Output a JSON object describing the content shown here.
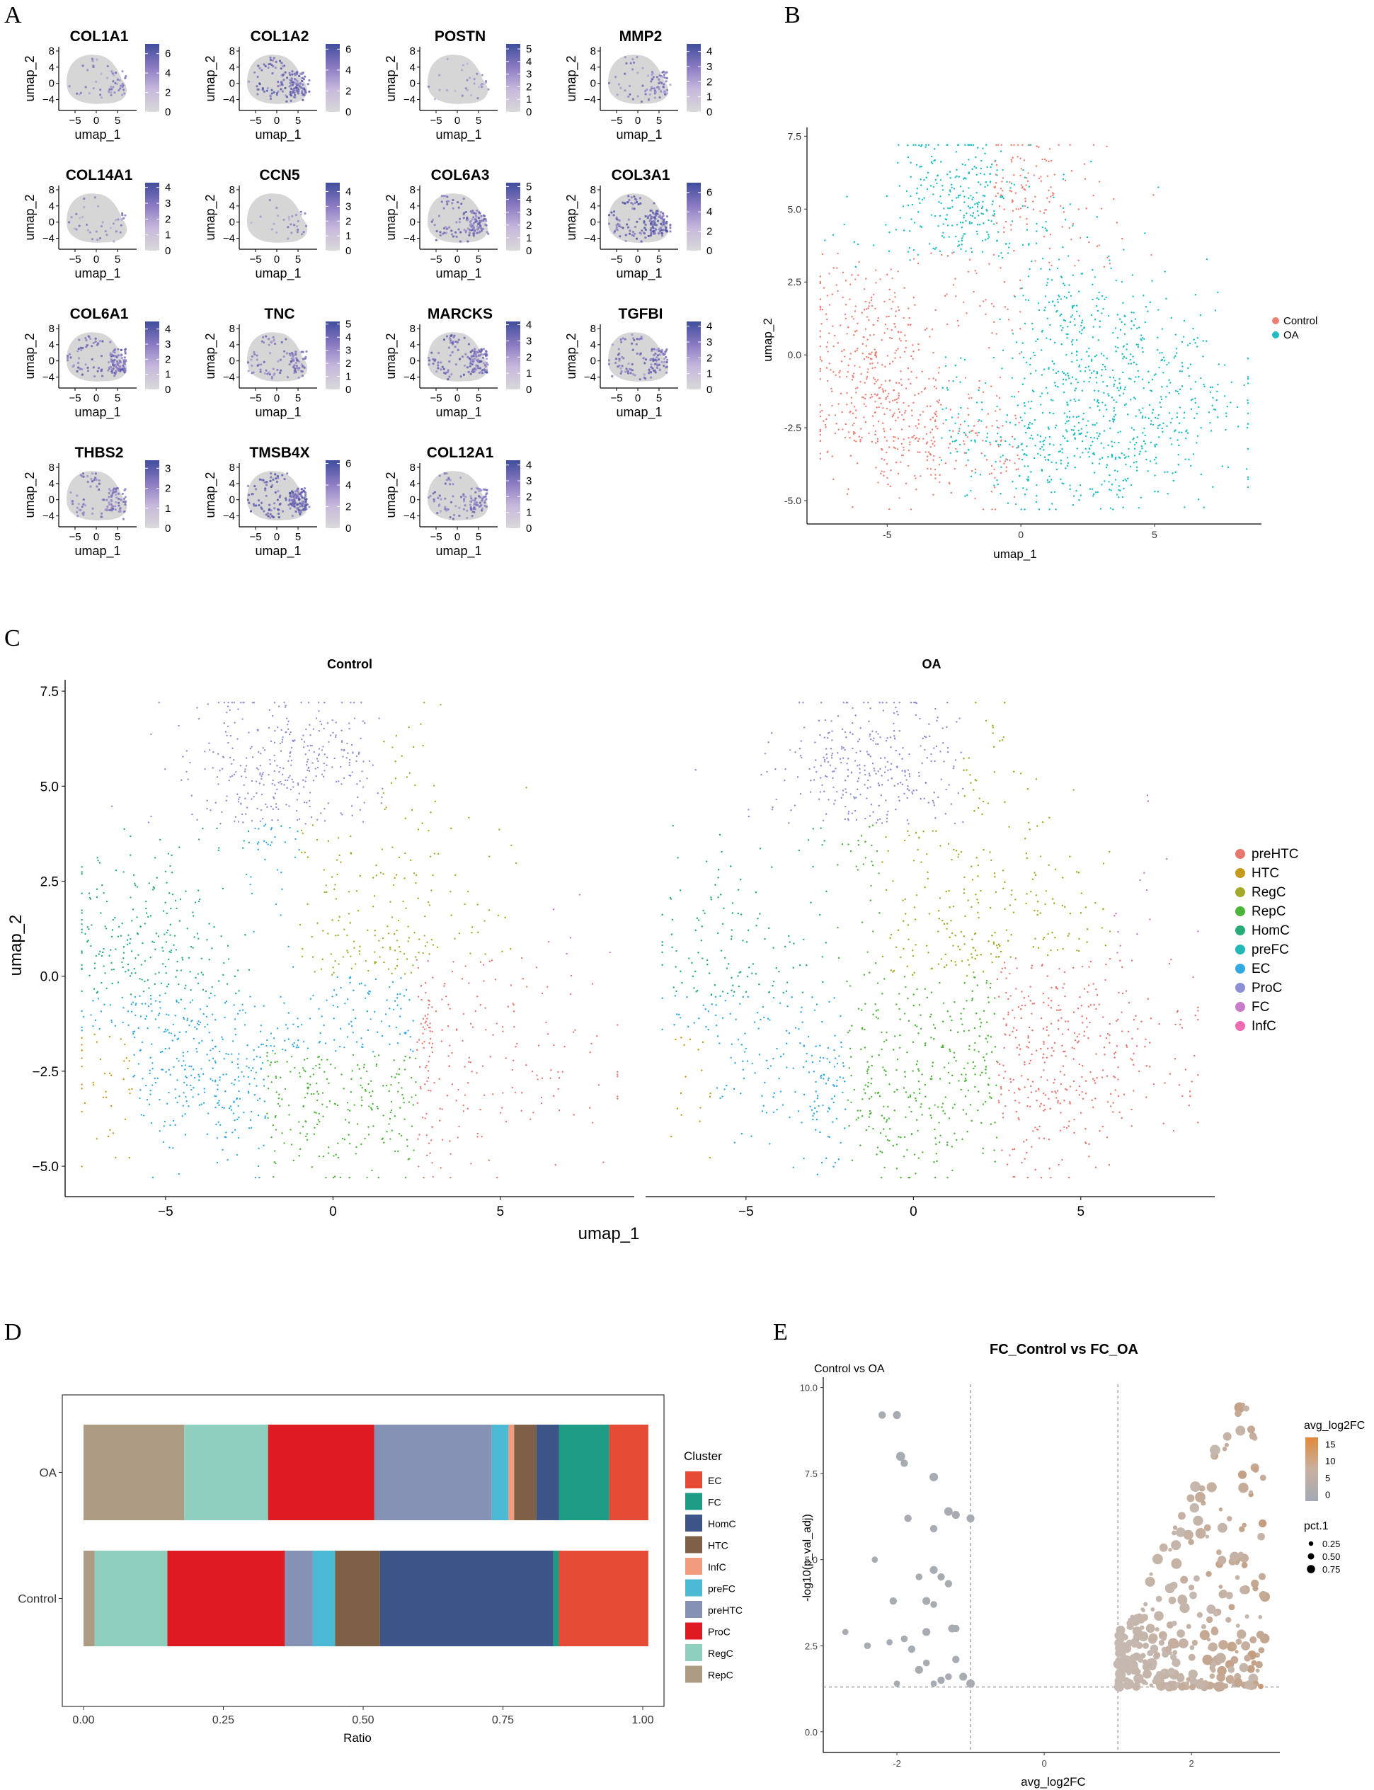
{
  "panel_labels": [
    "A",
    "B",
    "C",
    "D",
    "E"
  ],
  "chart_data": [
    {
      "panel": "A",
      "type": "scatter",
      "description_type": "umap feature plots",
      "xlabel": "umap_1",
      "ylabel": "umap_2",
      "x_ticks": [
        -5,
        0,
        5
      ],
      "y_ticks": [
        8,
        4,
        0,
        -4
      ],
      "colormap": [
        "#d9d9d9",
        "#c7b8dc",
        "#8a79c2",
        "#3f4d9c"
      ],
      "genes": [
        {
          "name": "COL1A1",
          "max": 7,
          "ticks": [
            6,
            4,
            2,
            0
          ],
          "level": 0.15
        },
        {
          "name": "COL1A2",
          "max": 6.5,
          "ticks": [
            6,
            4,
            2,
            0
          ],
          "level": 0.55
        },
        {
          "name": "POSTN",
          "max": 5.4,
          "ticks": [
            5,
            4,
            3,
            2,
            1,
            0
          ],
          "level": 0.05
        },
        {
          "name": "MMP2",
          "max": 4.5,
          "ticks": [
            4,
            3,
            2,
            1,
            0
          ],
          "level": 0.25
        },
        {
          "name": "COL14A1",
          "max": 4.3,
          "ticks": [
            4,
            3,
            2,
            1,
            0
          ],
          "level": 0.08
        },
        {
          "name": "CCN5",
          "max": 4.6,
          "ticks": [
            4,
            3,
            2,
            1,
            0
          ],
          "level": 0.05
        },
        {
          "name": "COL6A3",
          "max": 5.3,
          "ticks": [
            5,
            4,
            3,
            2,
            1,
            0
          ],
          "level": 0.45
        },
        {
          "name": "COL3A1",
          "max": 7,
          "ticks": [
            6,
            4,
            2,
            0
          ],
          "level": 0.6
        },
        {
          "name": "COL6A1",
          "max": 4.5,
          "ticks": [
            4,
            3,
            2,
            1,
            0
          ],
          "level": 0.5
        },
        {
          "name": "TNC",
          "max": 5.2,
          "ticks": [
            5,
            4,
            3,
            2,
            1,
            0
          ],
          "level": 0.35
        },
        {
          "name": "MARCKS",
          "max": 4.2,
          "ticks": [
            4,
            3,
            2,
            1,
            0
          ],
          "level": 0.5
        },
        {
          "name": "TGFBI",
          "max": 4.3,
          "ticks": [
            4,
            3,
            2,
            1,
            0
          ],
          "level": 0.4
        },
        {
          "name": "THBS2",
          "max": 3.4,
          "ticks": [
            3,
            2,
            1,
            0
          ],
          "level": 0.35
        },
        {
          "name": "TMSB4X",
          "max": 6.3,
          "ticks": [
            6,
            4,
            2,
            0
          ],
          "level": 0.65
        },
        {
          "name": "COL12A1",
          "max": 4.3,
          "ticks": [
            4,
            3,
            2,
            1,
            0
          ],
          "level": 0.35
        }
      ]
    },
    {
      "panel": "B",
      "type": "scatter",
      "xlabel": "umap_1",
      "ylabel": "umap_2",
      "xlim": [
        -8,
        9
      ],
      "ylim": [
        -5.8,
        7.8
      ],
      "x_ticks": [
        -5,
        0,
        5
      ],
      "x_tick_labels": [
        "-5",
        "0",
        "5"
      ],
      "y_ticks": [
        7.5,
        5.0,
        2.5,
        0.0,
        -2.5,
        -5.0
      ],
      "y_tick_labels": [
        "7.5",
        "5.0",
        "2.5",
        "0.0",
        "-2.5",
        "-5.0"
      ],
      "series": [
        {
          "name": "Control",
          "color": "#f07e73"
        },
        {
          "name": "OA",
          "color": "#1cbdc2"
        }
      ]
    },
    {
      "panel": "C",
      "type": "scatter",
      "xlabel": "umap_1",
      "ylabel": "umap_2",
      "facets": [
        "Control",
        "OA"
      ],
      "xlim": [
        -8,
        9
      ],
      "ylim": [
        -5.8,
        7.8
      ],
      "x_ticks": [
        -5,
        0,
        5
      ],
      "x_tick_labels": [
        "−5",
        "0",
        "5"
      ],
      "y_ticks": [
        7.5,
        5.0,
        2.5,
        0.0,
        -2.5,
        -5.0
      ],
      "y_tick_labels": [
        "7.5",
        "5.0",
        "2.5",
        "0.0",
        "−2.5",
        "−5.0"
      ],
      "legend": [
        {
          "name": "preHTC",
          "color": "#e8776f"
        },
        {
          "name": "HTC",
          "color": "#c39a1c"
        },
        {
          "name": "RegC",
          "color": "#a5a928"
        },
        {
          "name": "RepC",
          "color": "#4db43a"
        },
        {
          "name": "HomC",
          "color": "#27ab78"
        },
        {
          "name": "preFC",
          "color": "#23b7b7"
        },
        {
          "name": "EC",
          "color": "#33a9e0"
        },
        {
          "name": "ProC",
          "color": "#8d8fd3"
        },
        {
          "name": "FC",
          "color": "#c77bc9"
        },
        {
          "name": "InfC",
          "color": "#ec6bb1"
        }
      ]
    },
    {
      "panel": "D",
      "type": "bar",
      "orientation": "horizontal-stacked",
      "categories": [
        "OA",
        "Control"
      ],
      "xlabel": "Ratio",
      "x_ticks": [
        0,
        0.25,
        0.5,
        0.75,
        1.0
      ],
      "x_tick_labels": [
        "0.00",
        "0.25",
        "0.50",
        "0.75",
        "1.00"
      ],
      "legend_title": "Cluster",
      "series": [
        {
          "name": "RepC",
          "color": "#ae9b83",
          "values": [
            0.18,
            0.02
          ]
        },
        {
          "name": "RegC",
          "color": "#8ecfbd",
          "values": [
            0.15,
            0.13
          ]
        },
        {
          "name": "ProC",
          "color": "#df1a23",
          "values": [
            0.19,
            0.21
          ]
        },
        {
          "name": "preHTC",
          "color": "#8691b6",
          "values": [
            0.21,
            0.05
          ]
        },
        {
          "name": "preFC",
          "color": "#4bb9d3",
          "values": [
            0.03,
            0.04
          ]
        },
        {
          "name": "InfC",
          "color": "#f39b7f",
          "values": [
            0.01,
            0.0
          ]
        },
        {
          "name": "HTC",
          "color": "#7e6046",
          "values": [
            0.04,
            0.08
          ]
        },
        {
          "name": "HomC",
          "color": "#3c5488",
          "values": [
            0.04,
            0.31
          ]
        },
        {
          "name": "FC",
          "color": "#1f9c86",
          "values": [
            0.09,
            0.01
          ]
        },
        {
          "name": "EC",
          "color": "#e64b35",
          "values": [
            0.07,
            0.16
          ]
        }
      ],
      "legend_order": [
        "EC",
        "FC",
        "HomC",
        "HTC",
        "InfC",
        "preFC",
        "preHTC",
        "ProC",
        "RegC",
        "RepC"
      ]
    },
    {
      "panel": "E",
      "type": "scatter",
      "title": "FC_Control vs FC_OA",
      "subtitle": "Control vs OA",
      "xlabel": "avg_log2FC",
      "ylabel": "-log10(p_val_adj)",
      "xlim": [
        -3.0,
        3.2
      ],
      "ylim": [
        -0.6,
        10.3
      ],
      "x_ticks": [
        -2,
        0,
        2
      ],
      "y_ticks": [
        0.0,
        2.5,
        5.0,
        7.5,
        10.0
      ],
      "y_tick_labels": [
        "0.0",
        "2.5",
        "5.0",
        "7.5",
        "10.0"
      ],
      "vlines": [
        -1,
        1
      ],
      "hline": 1.3,
      "color_legend": {
        "title": "avg_log2FC",
        "ticks": [
          15,
          10,
          5,
          0
        ],
        "colors": [
          "#a3a9b4",
          "#c8b0a0",
          "#e08a3c"
        ]
      },
      "size_legend": {
        "title": "pct.1",
        "values": [
          0.25,
          0.5,
          0.75
        ],
        "labels": [
          "0.25",
          "0.50",
          "0.75"
        ]
      },
      "points_left": [
        [
          -2.2,
          9.2,
          0.4
        ],
        [
          -2.0,
          9.2,
          0.45
        ],
        [
          -1.95,
          8.0,
          0.55
        ],
        [
          -1.9,
          7.8,
          0.4
        ],
        [
          -1.5,
          7.4,
          0.5
        ],
        [
          -1.3,
          6.4,
          0.5
        ],
        [
          -1.2,
          6.3,
          0.45
        ],
        [
          -1.0,
          6.2,
          0.45
        ],
        [
          -1.85,
          6.2,
          0.4
        ],
        [
          -1.5,
          5.9,
          0.4
        ],
        [
          -2.3,
          5.0,
          0.3
        ],
        [
          -1.5,
          4.7,
          0.45
        ],
        [
          -1.4,
          4.5,
          0.4
        ],
        [
          -1.7,
          4.5,
          0.35
        ],
        [
          -1.3,
          4.3,
          0.4
        ],
        [
          -1.6,
          3.8,
          0.45
        ],
        [
          -1.5,
          3.7,
          0.35
        ],
        [
          -2.05,
          3.8,
          0.4
        ],
        [
          -1.25,
          3.0,
          0.45
        ],
        [
          -1.2,
          3.0,
          0.4
        ],
        [
          -1.6,
          2.9,
          0.45
        ],
        [
          -1.9,
          2.7,
          0.35
        ],
        [
          -2.1,
          2.6,
          0.3
        ],
        [
          -2.4,
          2.5,
          0.35
        ],
        [
          -2.7,
          2.9,
          0.3
        ],
        [
          -1.2,
          2.1,
          0.4
        ],
        [
          -1.6,
          2.0,
          0.35
        ],
        [
          -1.7,
          1.8,
          0.45
        ],
        [
          -1.4,
          1.5,
          0.4
        ],
        [
          -1.1,
          1.6,
          0.45
        ],
        [
          -1.0,
          1.4,
          0.5
        ],
        [
          -1.3,
          1.6,
          0.35
        ],
        [
          -1.5,
          1.4,
          0.3
        ],
        [
          -2.0,
          1.4,
          0.3
        ],
        [
          -1.8,
          2.4,
          0.4
        ]
      ]
    }
  ]
}
